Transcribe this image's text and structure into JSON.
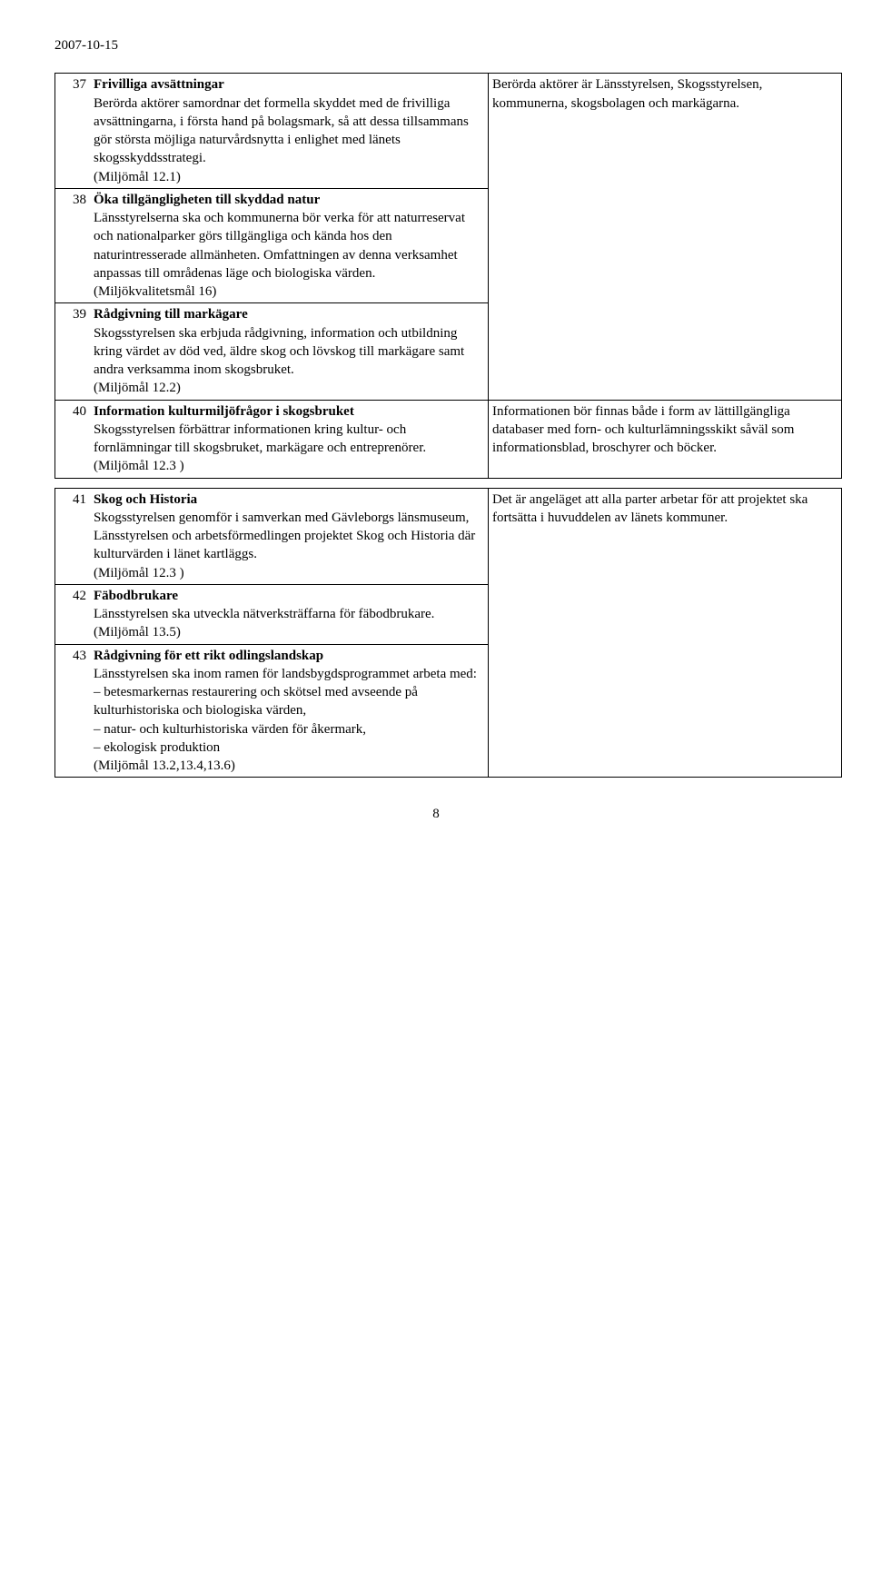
{
  "header_date": "2007-10-15",
  "page_number": "8",
  "rows": [
    {
      "num": "37",
      "title": "Frivilliga avsättningar",
      "body": "Berörda aktörer samordnar det formella skyddet med de frivilliga avsättningarna, i första hand på bolagsmark, så att dessa tillsammans gör största möjliga naturvårdsnytta i enlighet med länets skogsskyddsstrategi.\n(Miljömål 12.1)",
      "right": "Berörda aktörer är Länsstyrelsen, Skogsstyrelsen, kommunerna, skogsbolagen och markägarna.",
      "right_rowspan": 3
    },
    {
      "num": "38",
      "title": "Öka tillgängligheten till skyddad natur",
      "body": "Länsstyrelserna ska och kommunerna bör verka för att naturreservat och nationalparker görs tillgängliga och kända hos den naturintresserade allmänheten. Omfattningen av denna verksamhet anpassas till områdenas läge och biologiska värden.\n(Miljökvalitetsmål 16)"
    },
    {
      "num": "39",
      "title": "Rådgivning till markägare",
      "body": "Skogsstyrelsen ska erbjuda rådgivning, information och utbildning kring värdet av död ved, äldre skog och lövskog till markägare samt andra verksamma inom skogsbruket.\n(Miljömål 12.2)"
    },
    {
      "num": "40",
      "title": "Information kulturmiljöfrågor i skogsbruket",
      "body": "Skogsstyrelsen förbättrar informationen kring kultur- och fornlämningar till skogsbruket, markägare och entreprenörer.\n(Miljömål 12.3 )",
      "right": "Informationen bör finnas både i form av lättillgängliga databaser med forn- och kulturlämningsskikt såväl som informationsblad, broschyrer och böcker."
    },
    {
      "num": "41",
      "title": "Skog och Historia",
      "body": "Skogsstyrelsen genomför i samverkan med Gävleborgs länsmuseum, Länsstyrelsen och arbetsförmedlingen projektet Skog och Historia där kulturvärden i länet kartläggs.\n(Miljömål 12.3 )",
      "right": "Det är angeläget att alla parter arbetar för att projektet ska fortsätta i huvuddelen av länets kommuner.",
      "right_rowspan": 3,
      "gap_before": true
    },
    {
      "num": "42",
      "title": "Fäbodbrukare",
      "body": "Länsstyrelsen ska utveckla nätverksträffarna för fäbodbrukare.\n(Miljömål 13.5)"
    },
    {
      "num": "43",
      "title": "Rådgivning för ett rikt odlingslandskap",
      "body": "Länsstyrelsen ska inom ramen för landsbygdsprogrammet arbeta med:\n– betesmarkernas restaurering och skötsel med avseende på kulturhistoriska och biologiska värden,\n– natur- och kulturhistoriska värden för åkermark,\n– ekologisk produktion\n(Miljömål 13.2,13.4,13.6)"
    }
  ]
}
